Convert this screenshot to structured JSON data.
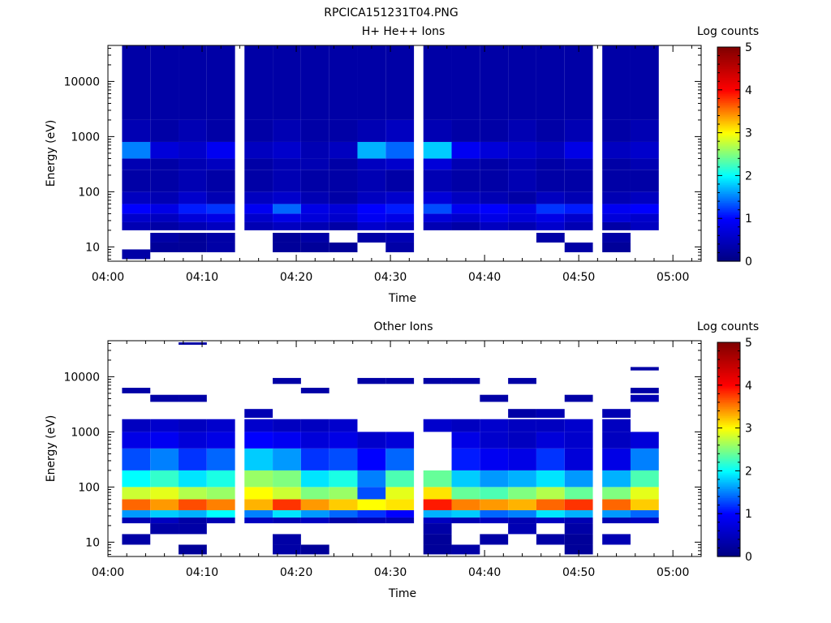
{
  "figure_title": "RPCICA151231T04.PNG",
  "chart_data": [
    {
      "type": "heatmap",
      "title": "H+ He++ Ions",
      "xlabel": "Time",
      "ylabel": "Energy (eV)",
      "x_ticks": [
        "04:00",
        "04:10",
        "04:20",
        "04:30",
        "04:40",
        "04:50",
        "05:00"
      ],
      "x_range": [
        "04:00",
        "05:03"
      ],
      "y_scale": "log",
      "y_ticks": [
        {
          "value": 10,
          "label": "10"
        },
        {
          "value": 100,
          "label": "100"
        },
        {
          "value": 1000,
          "label": "1000"
        },
        {
          "value": 10000,
          "label": "10000"
        }
      ],
      "y_range": [
        5.5,
        45000
      ],
      "colorbar": {
        "label": "Log counts",
        "range": [
          0,
          5
        ],
        "ticks": [
          "0",
          "1",
          "2",
          "3",
          "4",
          "5"
        ],
        "colormap": [
          "#000080",
          "#0000ff",
          "#00ffff",
          "#ffff00",
          "#ff0000",
          "#800000"
        ]
      },
      "time_bins": [
        "04:03",
        "04:06",
        "04:09",
        "04:12",
        "04:16",
        "04:19",
        "04:22",
        "04:25",
        "04:28",
        "04:31",
        "04:35",
        "04:38",
        "04:41",
        "04:44",
        "04:47",
        "04:50",
        "04:54",
        "04:57"
      ],
      "bands": [
        {
          "e_low": 6,
          "e_high": 9,
          "values": [
            0.3,
            null,
            null,
            null,
            null,
            null,
            null,
            null,
            null,
            null,
            null,
            null,
            null,
            null,
            null,
            null,
            null,
            null
          ]
        },
        {
          "e_low": 8,
          "e_high": 12,
          "values": [
            null,
            0.2,
            0.2,
            0.3,
            null,
            0.2,
            0.2,
            0.2,
            null,
            0.3,
            null,
            null,
            null,
            null,
            null,
            0.3,
            0.2,
            null
          ]
        },
        {
          "e_low": 12,
          "e_high": 18,
          "values": [
            null,
            0.3,
            0.2,
            0.3,
            null,
            0.2,
            0.3,
            null,
            0.3,
            0.4,
            null,
            null,
            null,
            null,
            0.3,
            null,
            0.3,
            null
          ]
        },
        {
          "e_low": 20,
          "e_high": 28,
          "values": [
            0.4,
            0.3,
            0.4,
            0.5,
            0.4,
            0.5,
            0.4,
            0.3,
            0.6,
            0.5,
            0.4,
            0.3,
            0.5,
            0.4,
            0.6,
            0.4,
            0.3,
            0.5
          ]
        },
        {
          "e_low": 28,
          "e_high": 40,
          "values": [
            0.6,
            0.5,
            0.7,
            0.8,
            0.6,
            0.8,
            0.7,
            0.6,
            0.9,
            0.8,
            0.7,
            0.6,
            0.8,
            0.7,
            0.8,
            0.6,
            0.7,
            0.6
          ]
        },
        {
          "e_low": 40,
          "e_high": 60,
          "values": [
            1.0,
            0.8,
            1.1,
            1.2,
            0.9,
            1.4,
            0.8,
            0.7,
            1.0,
            1.1,
            1.3,
            0.9,
            1.0,
            0.8,
            1.2,
            1.1,
            0.9,
            1.0
          ]
        },
        {
          "e_low": 60,
          "e_high": 100,
          "values": [
            0.5,
            0.4,
            0.6,
            0.4,
            0.5,
            0.6,
            0.4,
            0.3,
            0.5,
            0.6,
            0.7,
            0.5,
            0.4,
            0.3,
            0.5,
            0.4,
            0.4,
            0.5
          ]
        },
        {
          "e_low": 100,
          "e_high": 250,
          "values": [
            0.3,
            0.3,
            0.4,
            0.3,
            0.3,
            0.4,
            0.3,
            0.3,
            0.4,
            0.3,
            0.4,
            0.3,
            0.3,
            0.4,
            0.3,
            0.3,
            0.3,
            0.3
          ]
        },
        {
          "e_low": 250,
          "e_high": 400,
          "values": [
            0.4,
            0.3,
            0.4,
            0.5,
            0.3,
            0.4,
            0.4,
            0.3,
            0.5,
            0.6,
            0.7,
            0.4,
            0.3,
            0.4,
            0.3,
            0.4,
            0.3,
            0.4
          ]
        },
        {
          "e_low": 400,
          "e_high": 800,
          "values": [
            1.5,
            0.7,
            0.6,
            0.9,
            0.5,
            0.6,
            0.4,
            0.5,
            1.7,
            1.4,
            1.8,
            0.9,
            0.7,
            0.6,
            0.5,
            0.8,
            0.5,
            0.6
          ]
        },
        {
          "e_low": 800,
          "e_high": 2000,
          "values": [
            0.4,
            0.3,
            0.4,
            0.3,
            0.3,
            0.4,
            0.3,
            0.3,
            0.4,
            0.5,
            0.4,
            0.3,
            0.3,
            0.4,
            0.3,
            0.4,
            0.3,
            0.4
          ]
        },
        {
          "e_low": 2000,
          "e_high": 45000,
          "values": [
            0.3,
            0.3,
            0.3,
            0.3,
            0.3,
            0.3,
            0.3,
            0.3,
            0.3,
            0.3,
            0.3,
            0.3,
            0.3,
            0.3,
            0.3,
            0.3,
            0.3,
            0.3
          ]
        }
      ]
    },
    {
      "type": "heatmap",
      "title": "Other Ions",
      "xlabel": "Time",
      "ylabel": "Energy (eV)",
      "x_ticks": [
        "04:00",
        "04:10",
        "04:20",
        "04:30",
        "04:40",
        "04:50",
        "05:00"
      ],
      "x_range": [
        "04:00",
        "05:03"
      ],
      "y_scale": "log",
      "y_ticks": [
        {
          "value": 10,
          "label": "10"
        },
        {
          "value": 100,
          "label": "100"
        },
        {
          "value": 1000,
          "label": "1000"
        },
        {
          "value": 10000,
          "label": "10000"
        }
      ],
      "y_range": [
        5.5,
        45000
      ],
      "colorbar": {
        "label": "Log counts",
        "range": [
          0,
          5
        ],
        "ticks": [
          "0",
          "1",
          "2",
          "3",
          "4",
          "5"
        ],
        "colormap": [
          "#000080",
          "#0000ff",
          "#00ffff",
          "#ffff00",
          "#ff0000",
          "#800000"
        ]
      },
      "time_bins": [
        "04:03",
        "04:06",
        "04:09",
        "04:12",
        "04:16",
        "04:19",
        "04:22",
        "04:25",
        "04:28",
        "04:31",
        "04:35",
        "04:38",
        "04:41",
        "04:44",
        "04:47",
        "04:50",
        "04:54",
        "04:57"
      ],
      "bands": [
        {
          "e_low": 6,
          "e_high": 9,
          "values": [
            null,
            null,
            0.2,
            null,
            null,
            0.3,
            0.2,
            null,
            null,
            null,
            0.2,
            0.3,
            null,
            null,
            null,
            0.2,
            null,
            null
          ]
        },
        {
          "e_low": 9,
          "e_high": 14,
          "values": [
            0.3,
            null,
            null,
            null,
            null,
            0.3,
            null,
            null,
            null,
            null,
            0.2,
            null,
            0.3,
            null,
            0.3,
            0.2,
            0.4,
            null
          ]
        },
        {
          "e_low": 14,
          "e_high": 22,
          "values": [
            null,
            0.3,
            0.3,
            null,
            null,
            null,
            null,
            null,
            null,
            null,
            0.3,
            null,
            null,
            0.4,
            null,
            0.3,
            null,
            null
          ]
        },
        {
          "e_low": 22,
          "e_high": 28,
          "values": [
            0.4,
            0.5,
            0.3,
            0.4,
            0.5,
            0.4,
            0.5,
            0.3,
            0.4,
            0.4,
            0.5,
            0.4,
            0.5,
            0.4,
            0.5,
            0.4,
            0.4,
            0.5
          ]
        },
        {
          "e_low": 28,
          "e_high": 38,
          "values": [
            1.6,
            1.8,
            1.7,
            2.0,
            1.5,
            1.9,
            1.6,
            1.4,
            1.2,
            1.0,
            1.7,
            1.8,
            1.4,
            1.5,
            1.9,
            1.7,
            1.6,
            1.4
          ]
        },
        {
          "e_low": 38,
          "e_high": 60,
          "values": [
            3.6,
            3.4,
            3.7,
            3.5,
            3.3,
            3.8,
            3.4,
            3.2,
            3.0,
            3.1,
            3.9,
            3.5,
            3.4,
            3.3,
            3.6,
            3.8,
            3.6,
            3.2
          ]
        },
        {
          "e_low": 60,
          "e_high": 100,
          "values": [
            2.8,
            2.9,
            2.7,
            2.6,
            3.0,
            2.8,
            2.5,
            2.6,
            1.3,
            2.9,
            3.1,
            2.4,
            2.3,
            2.5,
            2.7,
            2.4,
            2.5,
            2.9
          ]
        },
        {
          "e_low": 100,
          "e_high": 200,
          "values": [
            2.0,
            2.2,
            1.9,
            2.1,
            2.6,
            2.5,
            1.9,
            2.1,
            1.5,
            2.3,
            2.4,
            1.8,
            1.6,
            1.7,
            1.9,
            1.6,
            1.7,
            2.3
          ]
        },
        {
          "e_low": 200,
          "e_high": 500,
          "values": [
            1.3,
            1.5,
            1.2,
            1.4,
            1.8,
            1.6,
            1.2,
            1.3,
            1.0,
            1.4,
            null,
            1.1,
            0.9,
            0.8,
            1.2,
            0.7,
            0.8,
            1.5
          ]
        },
        {
          "e_low": 500,
          "e_high": 1000,
          "values": [
            0.8,
            0.9,
            0.7,
            0.8,
            1.0,
            0.9,
            0.7,
            0.8,
            0.6,
            0.7,
            null,
            0.8,
            0.6,
            0.5,
            0.7,
            0.6,
            0.5,
            0.7
          ]
        },
        {
          "e_low": 1000,
          "e_high": 1700,
          "values": [
            0.5,
            0.6,
            0.5,
            0.6,
            0.6,
            0.5,
            0.5,
            0.6,
            null,
            null,
            0.6,
            0.5,
            0.6,
            0.5,
            0.5,
            0.6,
            0.5,
            null
          ]
        },
        {
          "e_low": 1800,
          "e_high": 2600,
          "values": [
            null,
            null,
            null,
            null,
            0.4,
            null,
            null,
            null,
            null,
            null,
            null,
            null,
            null,
            0.3,
            0.4,
            null,
            0.4,
            null
          ]
        },
        {
          "e_low": 3500,
          "e_high": 4700,
          "values": [
            null,
            0.3,
            0.3,
            null,
            null,
            null,
            null,
            null,
            null,
            null,
            null,
            null,
            0.3,
            null,
            null,
            0.3,
            null,
            0.4
          ]
        },
        {
          "e_low": 5000,
          "e_high": 6300,
          "values": [
            0.3,
            null,
            null,
            null,
            null,
            null,
            0.3,
            null,
            null,
            null,
            null,
            null,
            null,
            null,
            null,
            null,
            null,
            0.3
          ]
        },
        {
          "e_low": 7400,
          "e_high": 9500,
          "values": [
            null,
            null,
            null,
            null,
            null,
            0.3,
            null,
            null,
            0.3,
            0.3,
            0.3,
            0.3,
            null,
            0.3,
            null,
            null,
            null,
            null
          ]
        },
        {
          "e_low": 13000,
          "e_high": 15000,
          "values": [
            null,
            null,
            null,
            null,
            null,
            null,
            null,
            null,
            null,
            null,
            null,
            null,
            null,
            null,
            null,
            null,
            null,
            0.3
          ]
        },
        {
          "e_low": 38000,
          "e_high": 42000,
          "values": [
            null,
            null,
            0.3,
            null,
            null,
            null,
            null,
            null,
            null,
            null,
            null,
            null,
            null,
            null,
            null,
            null,
            null,
            null
          ]
        }
      ]
    }
  ]
}
